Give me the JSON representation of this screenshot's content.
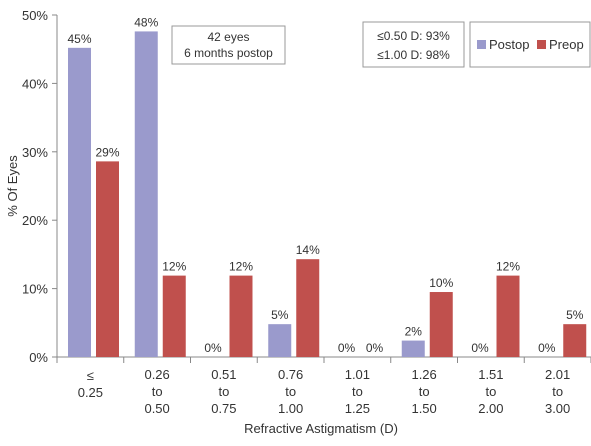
{
  "chart_data": {
    "type": "bar",
    "xlabel": "Refractive Astigmatism (D)",
    "ylabel": "% Of Eyes",
    "ylim": [
      0,
      50
    ],
    "ytick_step": 10,
    "ytick_suffix": "%",
    "grid": false,
    "legend_placement": "top-right",
    "categories": [
      [
        "≤",
        "0.25"
      ],
      [
        "0.26",
        "to",
        "0.50"
      ],
      [
        "0.51",
        "to",
        "0.75"
      ],
      [
        "0.76",
        "to",
        "1.00"
      ],
      [
        "1.01",
        "to",
        "1.25"
      ],
      [
        "1.26",
        "to",
        "1.50"
      ],
      [
        "1.51",
        "to",
        "2.00"
      ],
      [
        "2.01",
        "to",
        "3.00"
      ]
    ],
    "series": [
      {
        "name": "Postop",
        "color": "#9a9acc",
        "values": [
          45.2,
          47.6,
          0,
          4.8,
          0,
          2.4,
          0,
          0
        ],
        "labels": [
          "45%",
          "48%",
          "0%",
          "5%",
          "0%",
          "2%",
          "0%",
          "0%"
        ]
      },
      {
        "name": "Preop",
        "color": "#c0504d",
        "values": [
          28.6,
          11.9,
          11.9,
          14.3,
          0,
          9.5,
          11.9,
          4.8
        ],
        "labels": [
          "29%",
          "12%",
          "12%",
          "14%",
          "0%",
          "10%",
          "12%",
          "5%"
        ]
      }
    ],
    "annotations": [
      {
        "name": "eyes-info-box",
        "lines": [
          "42 eyes",
          "6 months postop"
        ]
      },
      {
        "name": "threshold-box",
        "lines": [
          "≤0.50 D: 93%",
          "≤1.00 D: 98%"
        ]
      }
    ]
  }
}
